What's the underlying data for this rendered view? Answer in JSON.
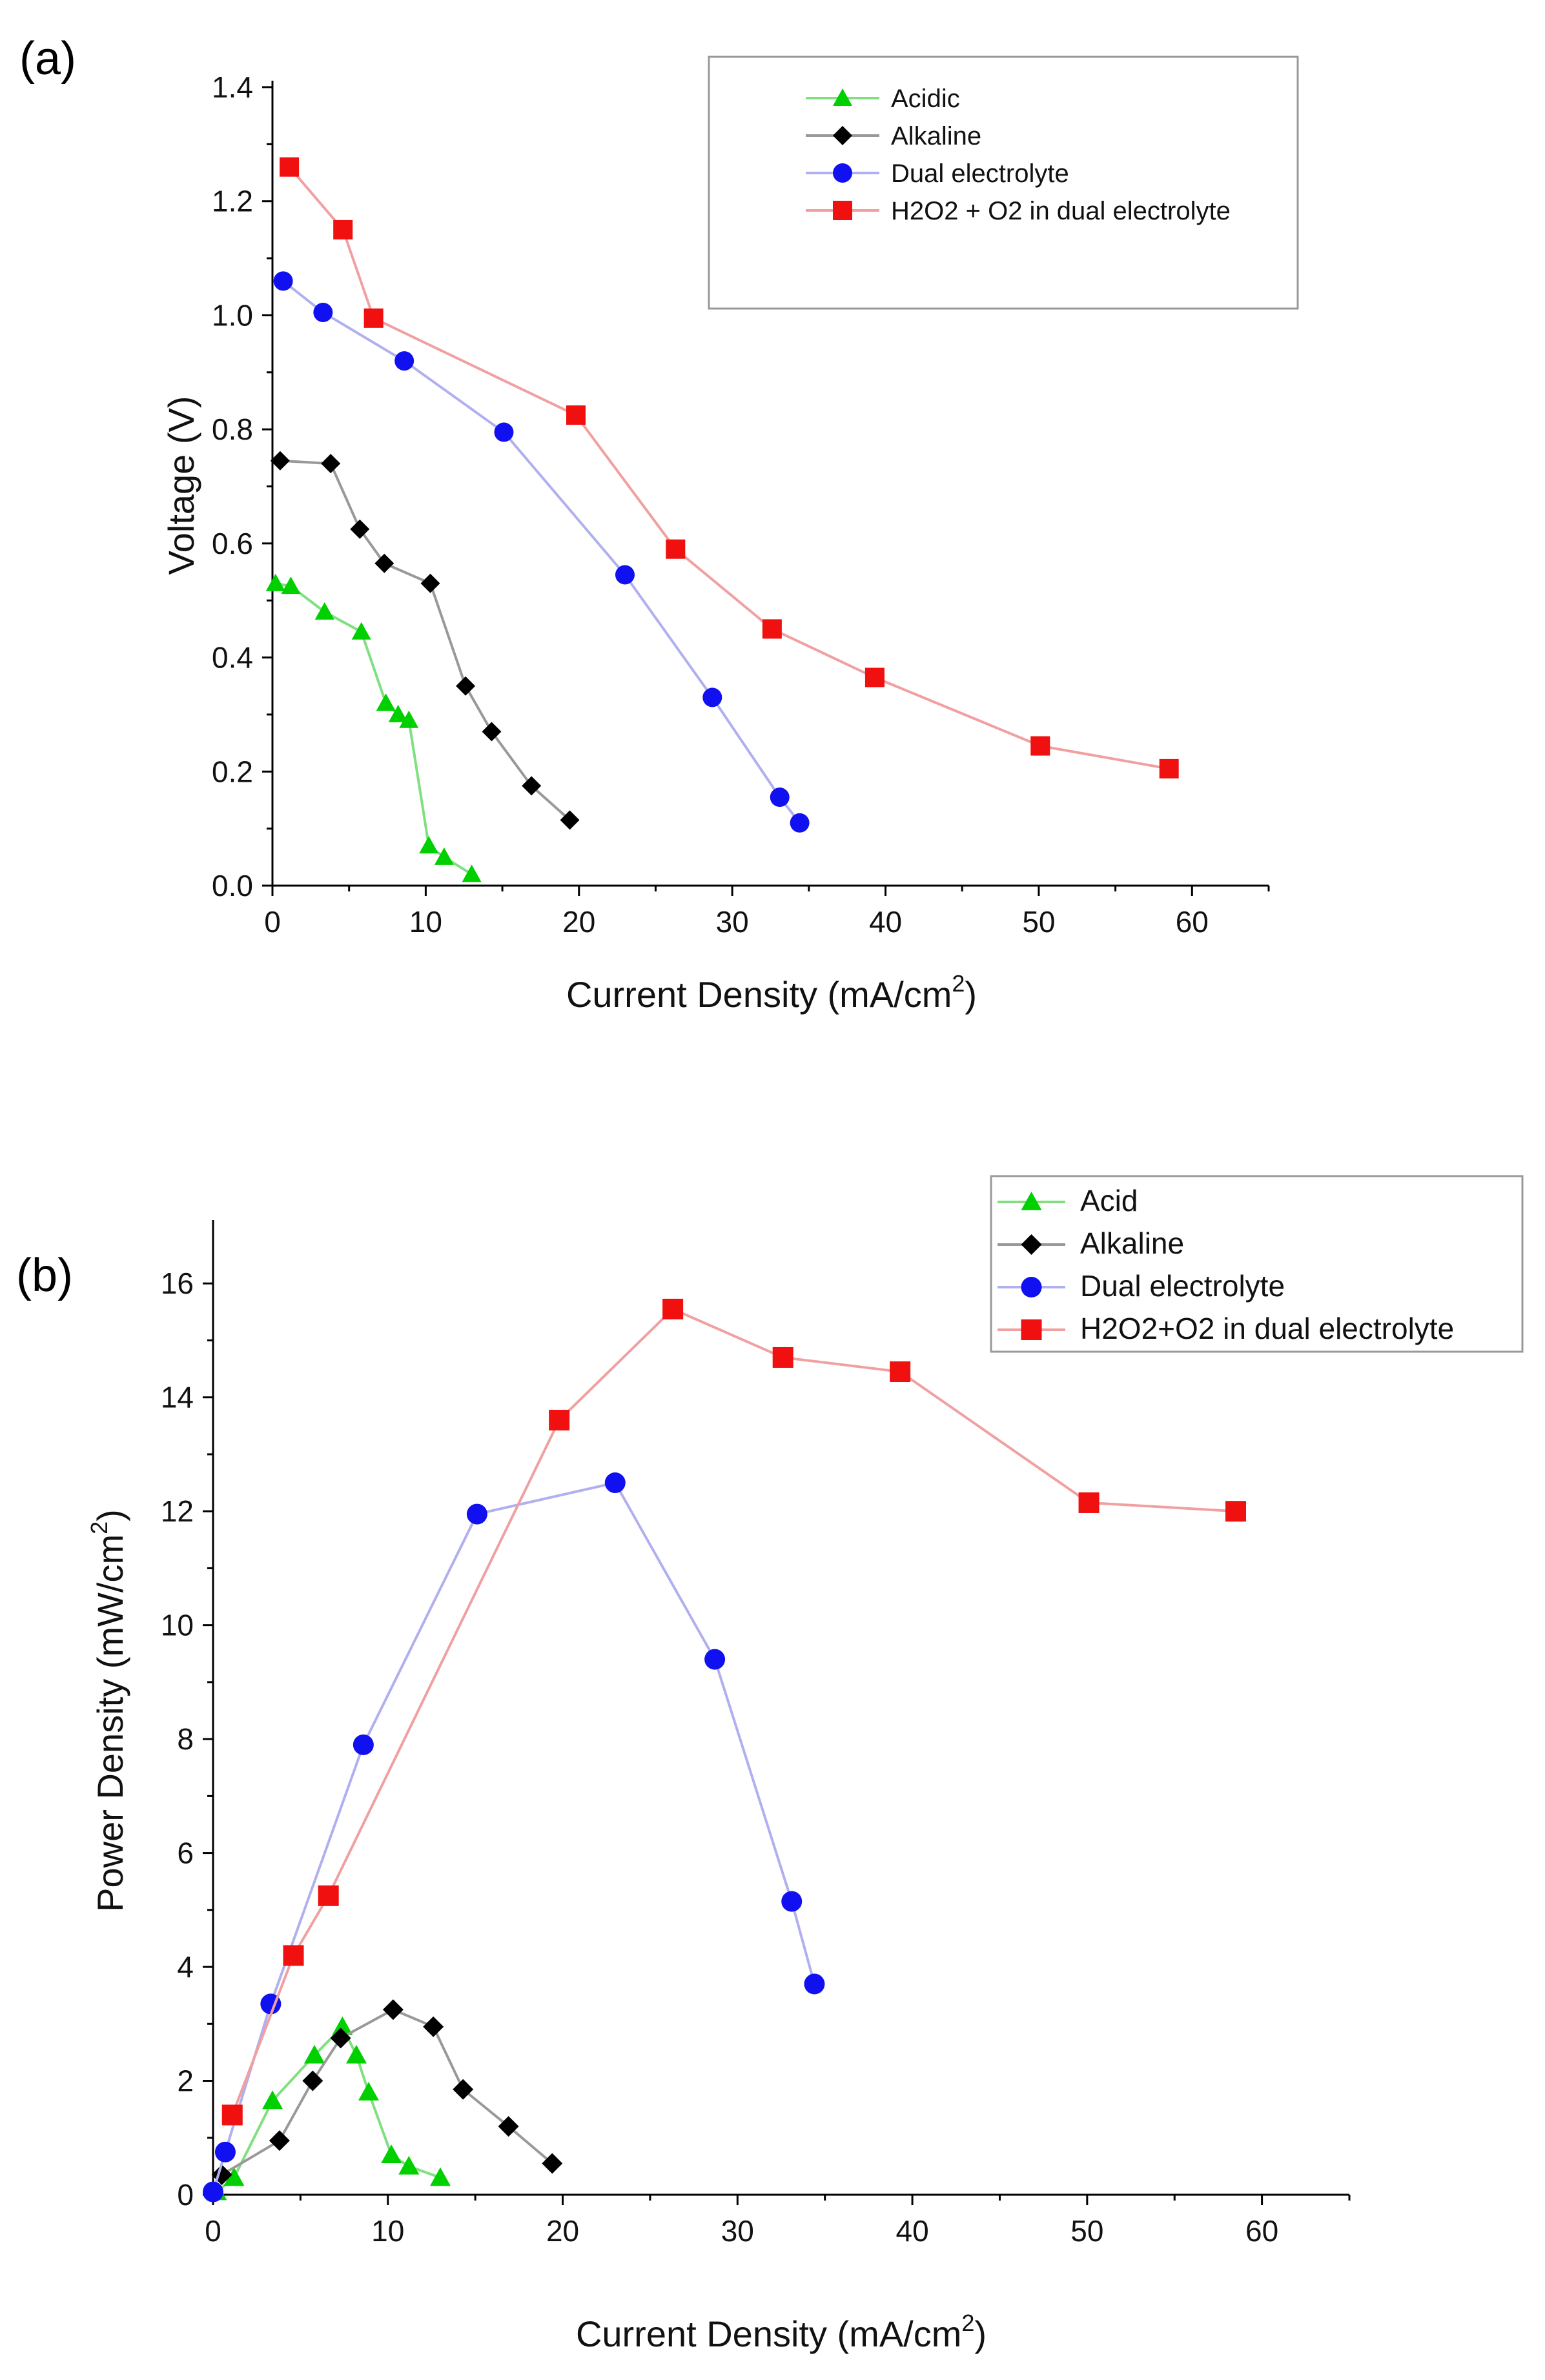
{
  "chart_data": [
    {
      "type": "line",
      "panel_label": "(a)",
      "xlabel": "Current Density (mA/cm",
      "xlabel_sup": "2",
      "xlabel_end": ")",
      "ylabel": "Voltage (V)",
      "xlim": [
        0,
        65
      ],
      "ylim": [
        0,
        1.4
      ],
      "xticks": [
        0,
        10,
        20,
        30,
        40,
        50,
        60
      ],
      "yticks": [
        0.0,
        0.2,
        0.4,
        0.6,
        0.8,
        1.0,
        1.2,
        1.4
      ],
      "xtick_labels": [
        "0",
        "10",
        "20",
        "30",
        "40",
        "50",
        "60"
      ],
      "ytick_labels": [
        "0.0",
        "0.2",
        "0.4",
        "0.6",
        "0.8",
        "1.0",
        "1.2",
        "1.4"
      ],
      "legend_position": "top-right",
      "series": [
        {
          "name": "Acidic",
          "marker": "triangle",
          "color": "#00d000",
          "line_color": "#80e080",
          "x": [
            0.2,
            1.2,
            3.4,
            5.8,
            7.4,
            8.2,
            8.9,
            10.2,
            11.2,
            13.0
          ],
          "y": [
            0.53,
            0.525,
            0.48,
            0.445,
            0.32,
            0.3,
            0.29,
            0.07,
            0.05,
            0.02
          ]
        },
        {
          "name": "Alkaline",
          "marker": "diamond",
          "color": "#000000",
          "line_color": "#999999",
          "x": [
            0.5,
            3.8,
            5.7,
            7.3,
            10.3,
            12.6,
            14.3,
            16.9,
            19.4
          ],
          "y": [
            0.745,
            0.74,
            0.625,
            0.565,
            0.53,
            0.35,
            0.27,
            0.175,
            0.115
          ]
        },
        {
          "name": "Dual electrolyte",
          "marker": "circle",
          "color": "#1010f0",
          "line_color": "#b0b0f0",
          "x": [
            0.7,
            3.3,
            8.6,
            15.1,
            23.0,
            28.7,
            33.1,
            34.4
          ],
          "y": [
            1.06,
            1.005,
            0.92,
            0.795,
            0.545,
            0.33,
            0.155,
            0.11
          ]
        },
        {
          "name": "H2O2 + O2 in dual electrolyte",
          "marker": "square",
          "color": "#f01010",
          "line_color": "#f0a0a0",
          "x": [
            1.1,
            4.6,
            6.6,
            19.8,
            26.3,
            32.6,
            39.3,
            50.1,
            58.5
          ],
          "y": [
            1.26,
            1.15,
            0.995,
            0.825,
            0.59,
            0.45,
            0.365,
            0.245,
            0.205
          ]
        }
      ]
    },
    {
      "type": "line",
      "panel_label": "(b)",
      "xlabel": "Current Density (mA/cm",
      "xlabel_sup": "2",
      "xlabel_end": ")",
      "ylabel": "Power Density (mW/cm",
      "ylabel_sup": "2",
      "ylabel_end": ")",
      "xlim": [
        0,
        65
      ],
      "ylim": [
        0,
        17
      ],
      "xticks": [
        0,
        10,
        20,
        30,
        40,
        50,
        60
      ],
      "yticks": [
        0,
        2,
        4,
        6,
        8,
        10,
        12,
        14,
        16
      ],
      "xtick_labels": [
        "0",
        "10",
        "20",
        "30",
        "40",
        "50",
        "60"
      ],
      "ytick_labels": [
        "0",
        "2",
        "4",
        "6",
        "8",
        "10",
        "12",
        "14",
        "16"
      ],
      "legend_position": "top-right",
      "series": [
        {
          "name": "Acid",
          "marker": "triangle",
          "color": "#00d000",
          "line_color": "#80e080",
          "x": [
            0.2,
            1.2,
            3.4,
            5.8,
            7.4,
            8.2,
            8.9,
            10.2,
            11.2,
            13.0
          ],
          "y": [
            0.05,
            0.3,
            1.65,
            2.45,
            2.95,
            2.45,
            1.8,
            0.7,
            0.5,
            0.3
          ]
        },
        {
          "name": "Alkaline",
          "marker": "diamond",
          "color": "#000000",
          "line_color": "#999999",
          "x": [
            0.5,
            3.8,
            5.7,
            7.3,
            10.3,
            12.6,
            14.3,
            16.9,
            19.4
          ],
          "y": [
            0.35,
            0.95,
            2.0,
            2.75,
            3.25,
            2.95,
            1.85,
            1.2,
            0.55
          ]
        },
        {
          "name": "Dual electrolyte",
          "marker": "circle",
          "color": "#1010f0",
          "line_color": "#b0b0f0",
          "x": [
            0.0,
            0.7,
            3.3,
            8.6,
            15.1,
            23.0,
            28.7,
            33.1,
            34.4
          ],
          "y": [
            0.05,
            0.75,
            3.35,
            7.9,
            11.95,
            12.5,
            9.4,
            5.15,
            3.7
          ]
        },
        {
          "name": "H2O2+O2 in dual electrolyte",
          "marker": "square",
          "color": "#f01010",
          "line_color": "#f0a0a0",
          "x": [
            1.1,
            4.6,
            6.6,
            19.8,
            26.3,
            32.6,
            39.3,
            50.1,
            58.5
          ],
          "y": [
            1.4,
            4.2,
            5.25,
            13.6,
            15.55,
            14.7,
            14.45,
            12.15,
            12.0
          ]
        }
      ]
    }
  ]
}
